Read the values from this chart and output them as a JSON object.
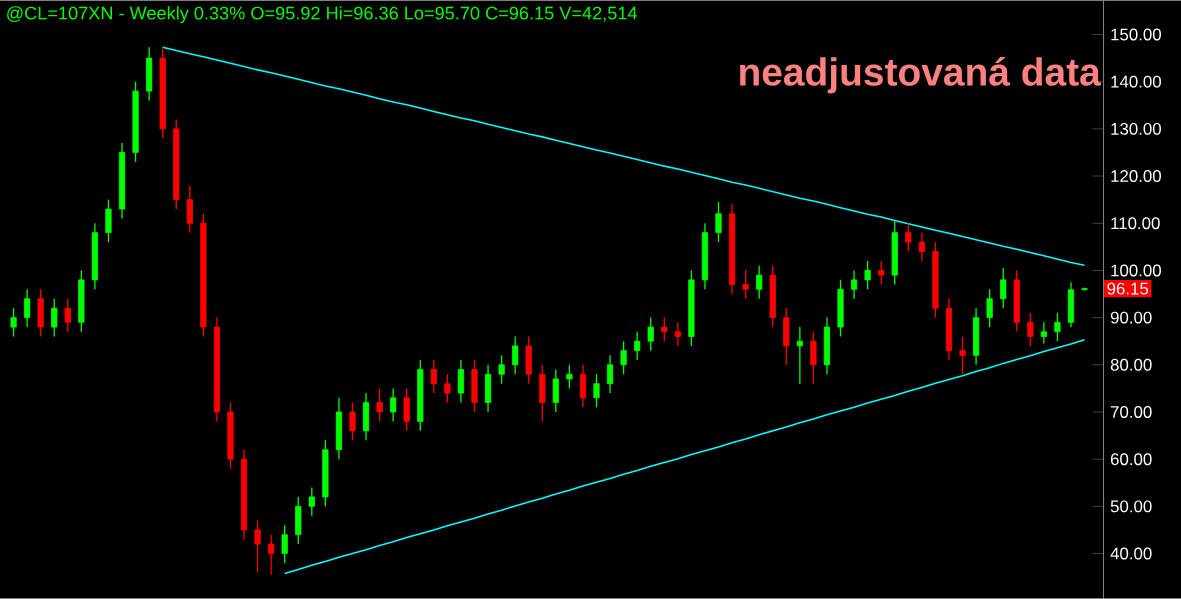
{
  "chart_data": {
    "type": "candlestick",
    "title": "@CL=107XN - Weekly  0.33%  O=95.92  Hi=96.36  Lo=95.70  C=96.15  V=42,514",
    "annotations": [
      "neadjustovaná data",
      "96.15"
    ],
    "categories": [
      null,
      null,
      null,
      null,
      null,
      null,
      null,
      null,
      null,
      null,
      null,
      null,
      null,
      null,
      null,
      null,
      null,
      null,
      null,
      null,
      null,
      null,
      null,
      null,
      null,
      null,
      null,
      null,
      null,
      null,
      null,
      null,
      null,
      null,
      null,
      null,
      null,
      null,
      null,
      null,
      null,
      null,
      null,
      null,
      null,
      null,
      null,
      null,
      null,
      null,
      null,
      null,
      null,
      null,
      null,
      null,
      null,
      null,
      null,
      null,
      null,
      null,
      null,
      null,
      null,
      null,
      null,
      null,
      null,
      null,
      null,
      null,
      null,
      null,
      null,
      null,
      null,
      null,
      null,
      null
    ],
    "ohlc": [
      [
        88,
        92,
        86,
        90
      ],
      [
        90,
        96,
        88,
        94
      ],
      [
        94,
        96,
        86,
        88
      ],
      [
        88,
        94,
        86,
        92
      ],
      [
        92,
        94,
        87,
        89
      ],
      [
        89,
        100,
        87,
        98
      ],
      [
        98,
        110,
        96,
        108
      ],
      [
        108,
        115,
        106,
        113
      ],
      [
        113,
        127,
        111,
        125
      ],
      [
        125,
        140,
        123,
        138
      ],
      [
        138,
        147.3,
        136,
        145
      ],
      [
        145,
        147,
        128,
        130
      ],
      [
        130,
        132,
        113,
        115
      ],
      [
        115,
        118,
        108,
        110
      ],
      [
        110,
        112,
        86,
        88
      ],
      [
        88,
        90,
        68,
        70
      ],
      [
        70,
        72,
        58,
        60
      ],
      [
        60,
        62,
        43,
        45
      ],
      [
        45,
        47,
        36,
        42
      ],
      [
        42,
        44,
        35.5,
        40
      ],
      [
        40,
        46,
        38,
        44
      ],
      [
        44,
        52,
        42,
        50
      ],
      [
        50,
        54,
        48,
        52
      ],
      [
        52,
        64,
        50,
        62
      ],
      [
        62,
        73,
        60,
        70
      ],
      [
        70,
        72,
        64,
        66
      ],
      [
        66,
        74,
        64,
        72
      ],
      [
        72,
        75,
        68,
        70
      ],
      [
        70,
        75,
        68,
        73
      ],
      [
        73,
        75,
        66,
        68
      ],
      [
        68,
        81,
        66,
        79
      ],
      [
        79,
        81,
        74,
        76
      ],
      [
        76,
        78,
        72,
        74
      ],
      [
        74,
        81,
        72,
        79
      ],
      [
        79,
        81,
        70,
        72
      ],
      [
        72,
        80,
        70,
        78
      ],
      [
        78,
        82,
        76,
        80
      ],
      [
        80,
        86,
        78,
        84
      ],
      [
        84,
        86,
        76,
        78
      ],
      [
        78,
        80,
        68,
        72
      ],
      [
        72,
        79,
        70,
        77
      ],
      [
        77,
        80,
        75,
        78
      ],
      [
        78,
        80,
        71,
        73
      ],
      [
        73,
        78,
        71,
        76
      ],
      [
        76,
        82,
        74,
        80
      ],
      [
        80,
        85,
        78,
        83
      ],
      [
        83,
        87,
        81,
        85
      ],
      [
        85,
        90,
        83,
        88
      ],
      [
        88,
        90,
        85,
        87
      ],
      [
        87,
        89,
        84,
        86
      ],
      [
        86,
        100,
        84,
        98
      ],
      [
        98,
        110,
        96,
        108
      ],
      [
        108,
        114.5,
        106,
        112
      ],
      [
        112,
        114,
        95,
        97
      ],
      [
        97,
        100,
        94,
        96
      ],
      [
        96,
        101,
        94,
        99
      ],
      [
        99,
        101,
        88,
        90
      ],
      [
        90,
        92,
        80,
        84
      ],
      [
        84,
        88,
        76,
        85
      ],
      [
        85,
        87,
        76,
        80
      ],
      [
        80,
        90,
        78,
        88
      ],
      [
        88,
        98,
        86,
        96
      ],
      [
        96,
        100,
        94,
        98
      ],
      [
        98,
        102,
        96,
        100
      ],
      [
        100,
        102,
        97,
        99
      ],
      [
        99,
        110.5,
        97,
        108
      ],
      [
        108,
        110,
        104,
        106
      ],
      [
        106,
        108,
        102,
        104
      ],
      [
        104,
        106,
        90,
        92
      ],
      [
        92,
        94,
        81,
        83
      ],
      [
        83,
        86,
        78,
        82
      ],
      [
        82,
        92,
        80,
        90
      ],
      [
        90,
        96,
        88,
        94
      ],
      [
        94,
        100.5,
        92,
        98
      ],
      [
        98,
        100,
        87,
        89
      ],
      [
        89,
        91,
        84,
        86
      ],
      [
        86,
        89,
        84.5,
        87
      ],
      [
        87,
        91,
        85,
        89
      ],
      [
        89,
        97.5,
        88,
        95.9
      ],
      [
        95.92,
        96.36,
        95.7,
        96.15
      ]
    ],
    "colors": [
      "#00ff00",
      "#00ff00",
      "#ff0000",
      "#00ff00",
      "#ff0000",
      "#00ff00",
      "#00ff00",
      "#00ff00",
      "#00ff00",
      "#00ff00",
      "#00ff00",
      "#ff0000",
      "#ff0000",
      "#ff0000",
      "#ff0000",
      "#ff0000",
      "#ff0000",
      "#ff0000",
      "#ff0000",
      "#ff0000",
      "#00ff00",
      "#00ff00",
      "#00ff00",
      "#00ff00",
      "#00ff00",
      "#ff0000",
      "#00ff00",
      "#ff0000",
      "#00ff00",
      "#ff0000",
      "#00ff00",
      "#ff0000",
      "#ff0000",
      "#00ff00",
      "#ff0000",
      "#00ff00",
      "#00ff00",
      "#00ff00",
      "#ff0000",
      "#ff0000",
      "#00ff00",
      "#00ff00",
      "#ff0000",
      "#00ff00",
      "#00ff00",
      "#00ff00",
      "#00ff00",
      "#00ff00",
      "#ff0000",
      "#ff0000",
      "#00ff00",
      "#00ff00",
      "#00ff00",
      "#ff0000",
      "#ff0000",
      "#00ff00",
      "#ff0000",
      "#ff0000",
      "#00ff00",
      "#ff0000",
      "#00ff00",
      "#00ff00",
      "#00ff00",
      "#00ff00",
      "#ff0000",
      "#00ff00",
      "#ff0000",
      "#ff0000",
      "#ff0000",
      "#ff0000",
      "#ff0000",
      "#00ff00",
      "#00ff00",
      "#00ff00",
      "#ff0000",
      "#ff0000",
      "#00ff00",
      "#00ff00",
      "#00ff00",
      "#00ff00"
    ],
    "series": [
      {
        "type": "line",
        "values": [
          null,
          null,
          null,
          null,
          null,
          null,
          null,
          null,
          null,
          null,
          null,
          147.3,
          146.6,
          145.9,
          145.3,
          144.6,
          143.9,
          143.2,
          142.5,
          141.9,
          141.2,
          140.5,
          139.8,
          139.1,
          138.5,
          137.8,
          137.1,
          136.4,
          135.7,
          135.1,
          134.4,
          133.7,
          133.0,
          132.3,
          131.7,
          131.0,
          130.3,
          129.6,
          128.9,
          128.3,
          127.6,
          126.9,
          126.2,
          125.5,
          124.9,
          124.2,
          123.5,
          122.8,
          122.1,
          121.5,
          120.8,
          120.1,
          119.4,
          118.7,
          118.1,
          117.4,
          116.7,
          116.0,
          115.3,
          114.7,
          114.0,
          113.3,
          112.6,
          111.9,
          111.3,
          110.6,
          109.9,
          109.2,
          108.5,
          107.9,
          107.2,
          106.5,
          105.8,
          105.1,
          104.5,
          103.8,
          103.1,
          102.4,
          101.7,
          101.1
        ],
        "color": "#00ffff"
      },
      {
        "type": "line",
        "values": [
          null,
          null,
          null,
          null,
          null,
          null,
          null,
          null,
          null,
          null,
          null,
          null,
          null,
          null,
          null,
          null,
          null,
          null,
          null,
          null,
          35.8,
          36.6,
          37.5,
          38.3,
          39.2,
          40.0,
          40.8,
          41.7,
          42.5,
          43.4,
          44.2,
          45.0,
          45.9,
          46.7,
          47.5,
          48.4,
          49.2,
          50.1,
          50.9,
          51.7,
          52.6,
          53.4,
          54.3,
          55.1,
          55.9,
          56.8,
          57.6,
          58.5,
          59.3,
          60.1,
          61.0,
          61.8,
          62.6,
          63.5,
          64.3,
          65.2,
          66.0,
          66.8,
          67.7,
          68.5,
          69.4,
          70.2,
          71.0,
          71.9,
          72.7,
          73.5,
          74.4,
          75.2,
          76.1,
          76.9,
          77.7,
          78.6,
          79.4,
          80.3,
          81.1,
          81.9,
          82.8,
          83.6,
          84.4,
          85.3
        ],
        "color": "#00ffff"
      }
    ],
    "ylim": [
      30.5,
      157.2
    ],
    "yticks": [
      {
        "value": 40,
        "label": "40.00"
      },
      {
        "value": 50,
        "label": "50.00"
      },
      {
        "value": 60,
        "label": "60.00"
      },
      {
        "value": 70,
        "label": "70.00"
      },
      {
        "value": 80,
        "label": "80.00"
      },
      {
        "value": 90,
        "label": "90.00"
      },
      {
        "value": 100,
        "label": "100.00"
      },
      {
        "value": 110,
        "label": "110.00"
      },
      {
        "value": 120,
        "label": "120.00"
      },
      {
        "value": 130,
        "label": "130.00"
      },
      {
        "value": 140,
        "label": "140.00"
      },
      {
        "value": 150,
        "label": "150.00"
      }
    ]
  }
}
